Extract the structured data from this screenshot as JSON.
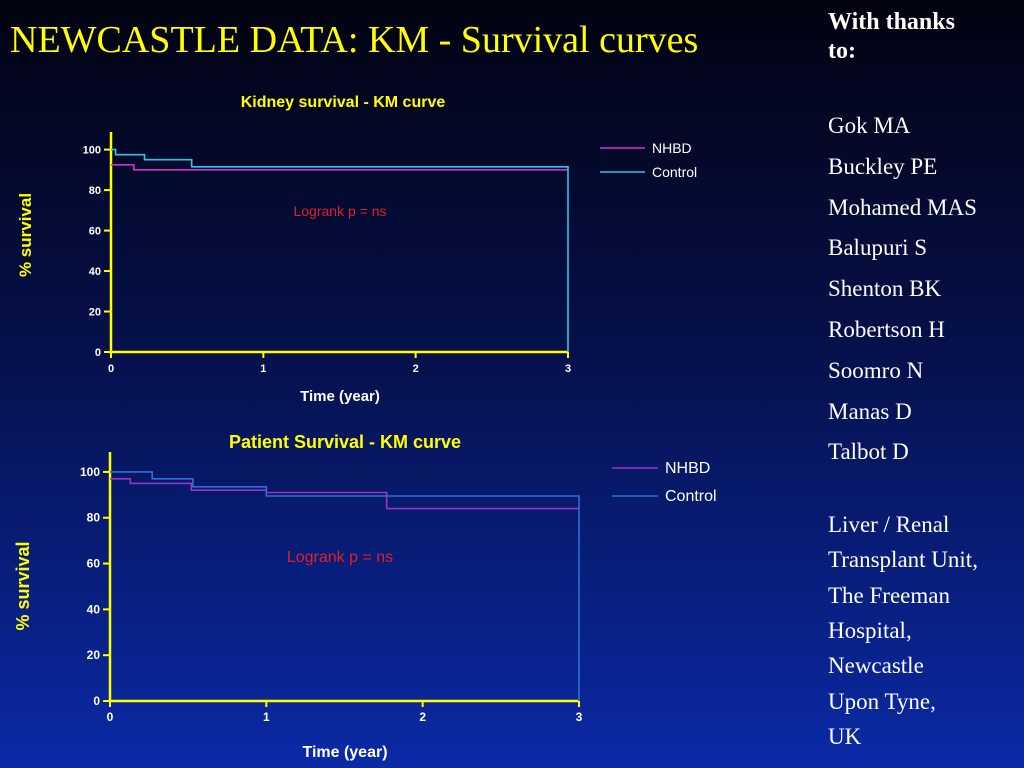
{
  "slide": {
    "title": "NEWCASTLE DATA:  KM - Survival curves"
  },
  "sidebar": {
    "heading": [
      "With thanks",
      "to:"
    ],
    "names": [
      "Gok MA",
      "Buckley PE",
      "Mohamed MAS",
      "Balupuri S",
      "Shenton BK",
      "Robertson H",
      "Soomro N",
      "Manas D",
      "Talbot D"
    ],
    "affiliation": [
      "Liver / Renal",
      "Transplant Unit,",
      "The Freeman",
      "Hospital,",
      "Newcastle",
      "Upon Tyne,",
      "UK"
    ]
  },
  "colors": {
    "title": "#ffff00",
    "axis": "#ffff00",
    "nhbd": "#cc33cc",
    "control": "#33c3e3",
    "nhbd_patient": "#9933cc",
    "control_patient": "#2e6fd1",
    "annotation": "#e0202a"
  },
  "chart_data": [
    {
      "type": "line",
      "title": "Kidney survival - KM curve",
      "xlabel": "Time (year)",
      "ylabel": "% survival",
      "xlim": [
        0,
        3
      ],
      "ylim": [
        0,
        100
      ],
      "xticks": [
        0,
        1,
        2,
        3
      ],
      "yticks": [
        0,
        20,
        40,
        60,
        80,
        100
      ],
      "annotation": "Logrank p = ns",
      "legend": "right",
      "series": [
        {
          "name": "NHBD",
          "x": [
            0,
            0.15,
            0.15,
            3
          ],
          "y": [
            92.5,
            92.5,
            90,
            90
          ]
        },
        {
          "name": "Control",
          "x": [
            0,
            0.03,
            0.03,
            0.22,
            0.22,
            0.53,
            0.53,
            3,
            3
          ],
          "y": [
            100,
            100,
            97.5,
            97.5,
            95,
            95,
            91.5,
            91.5,
            0
          ]
        }
      ]
    },
    {
      "type": "line",
      "title": "Patient Survival - KM curve",
      "xlabel": "Time (year)",
      "ylabel": "% survival",
      "xlim": [
        0,
        3
      ],
      "ylim": [
        0,
        100
      ],
      "xticks": [
        0,
        1,
        2,
        3
      ],
      "yticks": [
        0,
        20,
        40,
        60,
        80,
        100
      ],
      "annotation": "Logrank p = ns",
      "legend": "right",
      "series": [
        {
          "name": "NHBD",
          "x": [
            0,
            0.13,
            0.13,
            0.52,
            0.52,
            1.0,
            1.0,
            1.77,
            1.77,
            3
          ],
          "y": [
            97,
            97,
            95,
            95,
            92,
            92,
            91,
            91,
            84,
            84
          ]
        },
        {
          "name": "Control",
          "x": [
            0,
            0.27,
            0.27,
            0.53,
            0.53,
            1.0,
            1.0,
            3,
            3
          ],
          "y": [
            100,
            100,
            97,
            97,
            93.5,
            93.5,
            89.5,
            89.5,
            0
          ]
        }
      ]
    }
  ]
}
